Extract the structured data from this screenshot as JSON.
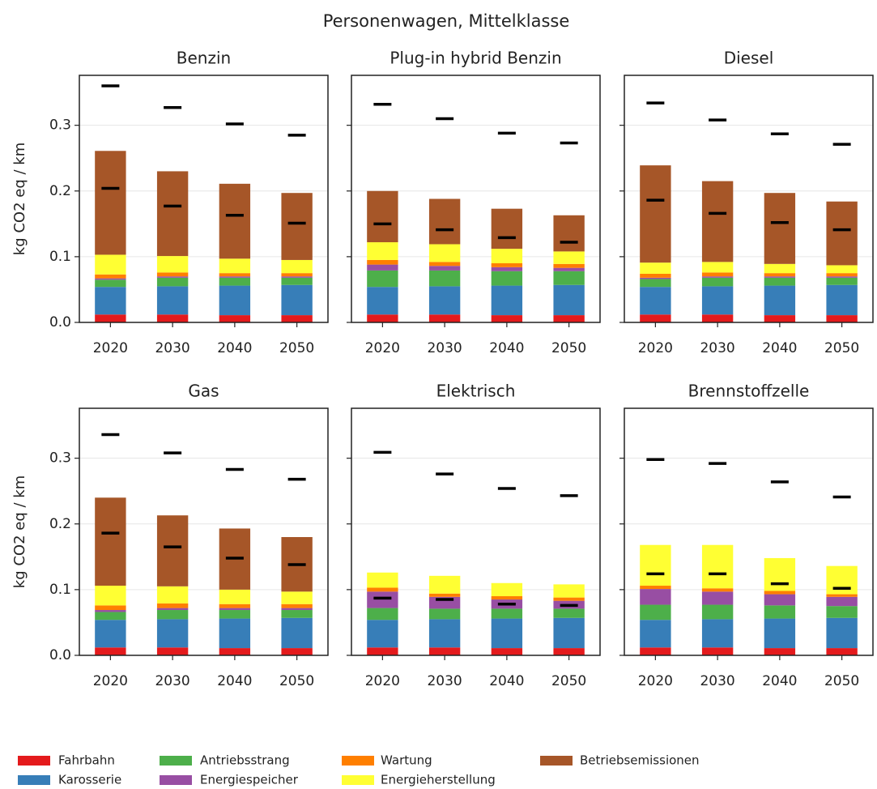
{
  "title": "Personenwagen, Mittelklasse",
  "chart_data": [
    {
      "type": "bar",
      "title": "Benzin",
      "ylabel": "kg CO2 eq / km",
      "categories": [
        "2020",
        "2030",
        "2040",
        "2050"
      ],
      "series": [
        {
          "name": "Fahrbahn",
          "color": "#e41a1c",
          "values": [
            0.012,
            0.012,
            0.011,
            0.011
          ]
        },
        {
          "name": "Karosserie",
          "color": "#377eb8",
          "values": [
            0.042,
            0.043,
            0.045,
            0.046
          ]
        },
        {
          "name": "Antriebsstrang",
          "color": "#4daf4a",
          "values": [
            0.011,
            0.013,
            0.012,
            0.011
          ]
        },
        {
          "name": "Energiespeicher",
          "color": "#984ea3",
          "values": [
            0.002,
            0.002,
            0.002,
            0.002
          ]
        },
        {
          "name": "Wartung",
          "color": "#ff7f00",
          "values": [
            0.006,
            0.006,
            0.005,
            0.005
          ]
        },
        {
          "name": "Energieherstellung",
          "color": "#ffff33",
          "values": [
            0.03,
            0.025,
            0.022,
            0.02
          ]
        },
        {
          "name": "Betriebsemissionen",
          "color": "#a65628",
          "values": [
            0.158,
            0.129,
            0.114,
            0.102
          ]
        }
      ],
      "markers": [
        [
          0.36,
          0.204
        ],
        [
          0.327,
          0.177
        ],
        [
          0.302,
          0.163
        ],
        [
          0.285,
          0.151
        ]
      ],
      "ylim": [
        0,
        0.376
      ],
      "yticks": [
        {
          "value": 0,
          "label": "0.0"
        },
        0.1,
        0.2,
        0.3
      ],
      "grid": true
    },
    {
      "type": "bar",
      "title": "Plug-in hybrid Benzin",
      "categories": [
        "2020",
        "2030",
        "2040",
        "2050"
      ],
      "series": [
        {
          "name": "Fahrbahn",
          "color": "#e41a1c",
          "values": [
            0.012,
            0.012,
            0.011,
            0.011
          ]
        },
        {
          "name": "Karosserie",
          "color": "#377eb8",
          "values": [
            0.042,
            0.043,
            0.045,
            0.046
          ]
        },
        {
          "name": "Antriebsstrang",
          "color": "#4daf4a",
          "values": [
            0.025,
            0.024,
            0.022,
            0.021
          ]
        },
        {
          "name": "Energiespeicher",
          "color": "#984ea3",
          "values": [
            0.009,
            0.007,
            0.006,
            0.005
          ]
        },
        {
          "name": "Wartung",
          "color": "#ff7f00",
          "values": [
            0.007,
            0.006,
            0.006,
            0.006
          ]
        },
        {
          "name": "Energieherstellung",
          "color": "#ffff33",
          "values": [
            0.027,
            0.027,
            0.022,
            0.019
          ]
        },
        {
          "name": "Betriebsemissionen",
          "color": "#a65628",
          "values": [
            0.078,
            0.069,
            0.061,
            0.055
          ]
        }
      ],
      "markers": [
        [
          0.332,
          0.15
        ],
        [
          0.31,
          0.141
        ],
        [
          0.288,
          0.129
        ],
        [
          0.273,
          0.122
        ]
      ],
      "ylim": [
        0,
        0.376
      ],
      "yticks": [
        0,
        0.1,
        0.2,
        0.3
      ],
      "grid": true
    },
    {
      "type": "bar",
      "title": "Diesel",
      "categories": [
        "2020",
        "2030",
        "2040",
        "2050"
      ],
      "series": [
        {
          "name": "Fahrbahn",
          "color": "#e41a1c",
          "values": [
            0.012,
            0.012,
            0.011,
            0.011
          ]
        },
        {
          "name": "Karosserie",
          "color": "#377eb8",
          "values": [
            0.042,
            0.043,
            0.045,
            0.046
          ]
        },
        {
          "name": "Antriebsstrang",
          "color": "#4daf4a",
          "values": [
            0.012,
            0.013,
            0.012,
            0.011
          ]
        },
        {
          "name": "Energiespeicher",
          "color": "#984ea3",
          "values": [
            0.002,
            0.002,
            0.002,
            0.002
          ]
        },
        {
          "name": "Wartung",
          "color": "#ff7f00",
          "values": [
            0.006,
            0.006,
            0.005,
            0.005
          ]
        },
        {
          "name": "Energieherstellung",
          "color": "#ffff33",
          "values": [
            0.017,
            0.016,
            0.014,
            0.012
          ]
        },
        {
          "name": "Betriebsemissionen",
          "color": "#a65628",
          "values": [
            0.148,
            0.123,
            0.108,
            0.097
          ]
        }
      ],
      "markers": [
        [
          0.334,
          0.186
        ],
        [
          0.308,
          0.166
        ],
        [
          0.287,
          0.152
        ],
        [
          0.271,
          0.141
        ]
      ],
      "ylim": [
        0,
        0.376
      ],
      "yticks": [
        0,
        0.1,
        0.2,
        0.3
      ],
      "grid": true
    },
    {
      "type": "bar",
      "title": "Gas",
      "ylabel": "kg CO2 eq / km",
      "categories": [
        "2020",
        "2030",
        "2040",
        "2050"
      ],
      "series": [
        {
          "name": "Fahrbahn",
          "color": "#e41a1c",
          "values": [
            0.012,
            0.012,
            0.011,
            0.011
          ]
        },
        {
          "name": "Karosserie",
          "color": "#377eb8",
          "values": [
            0.042,
            0.043,
            0.045,
            0.046
          ]
        },
        {
          "name": "Antriebsstrang",
          "color": "#4daf4a",
          "values": [
            0.012,
            0.014,
            0.013,
            0.012
          ]
        },
        {
          "name": "Energiespeicher",
          "color": "#984ea3",
          "values": [
            0.003,
            0.003,
            0.003,
            0.003
          ]
        },
        {
          "name": "Wartung",
          "color": "#ff7f00",
          "values": [
            0.007,
            0.007,
            0.006,
            0.006
          ]
        },
        {
          "name": "Energieherstellung",
          "color": "#ffff33",
          "values": [
            0.03,
            0.026,
            0.022,
            0.019
          ]
        },
        {
          "name": "Betriebsemissionen",
          "color": "#a65628",
          "values": [
            0.134,
            0.108,
            0.093,
            0.083
          ]
        }
      ],
      "markers": [
        [
          0.336,
          0.186
        ],
        [
          0.308,
          0.165
        ],
        [
          0.283,
          0.148
        ],
        [
          0.268,
          0.138
        ]
      ],
      "ylim": [
        0,
        0.376
      ],
      "yticks": [
        {
          "value": 0,
          "label": "0.0"
        },
        0.1,
        0.2,
        0.3
      ],
      "grid": true
    },
    {
      "type": "bar",
      "title": "Elektrisch",
      "categories": [
        "2020",
        "2030",
        "2040",
        "2050"
      ],
      "series": [
        {
          "name": "Fahrbahn",
          "color": "#e41a1c",
          "values": [
            0.012,
            0.012,
            0.011,
            0.011
          ]
        },
        {
          "name": "Karosserie",
          "color": "#377eb8",
          "values": [
            0.042,
            0.043,
            0.045,
            0.046
          ]
        },
        {
          "name": "Antriebsstrang",
          "color": "#4daf4a",
          "values": [
            0.018,
            0.016,
            0.015,
            0.014
          ]
        },
        {
          "name": "Energiespeicher",
          "color": "#984ea3",
          "values": [
            0.025,
            0.018,
            0.014,
            0.012
          ]
        },
        {
          "name": "Wartung",
          "color": "#ff7f00",
          "values": [
            0.006,
            0.005,
            0.005,
            0.005
          ]
        },
        {
          "name": "Energieherstellung",
          "color": "#ffff33",
          "values": [
            0.023,
            0.027,
            0.02,
            0.02
          ]
        },
        {
          "name": "Betriebsemissionen",
          "color": "#a65628",
          "values": [
            0,
            0,
            0,
            0
          ]
        }
      ],
      "markers": [
        [
          0.309,
          0.087
        ],
        [
          0.276,
          0.085
        ],
        [
          0.254,
          0.078
        ],
        [
          0.243,
          0.076
        ]
      ],
      "ylim": [
        0,
        0.376
      ],
      "yticks": [
        0,
        0.1,
        0.2,
        0.3
      ],
      "grid": true
    },
    {
      "type": "bar",
      "title": "Brennstoffzelle",
      "categories": [
        "2020",
        "2030",
        "2040",
        "2050"
      ],
      "series": [
        {
          "name": "Fahrbahn",
          "color": "#e41a1c",
          "values": [
            0.012,
            0.012,
            0.011,
            0.011
          ]
        },
        {
          "name": "Karosserie",
          "color": "#377eb8",
          "values": [
            0.042,
            0.043,
            0.045,
            0.046
          ]
        },
        {
          "name": "Antriebsstrang",
          "color": "#4daf4a",
          "values": [
            0.023,
            0.022,
            0.02,
            0.018
          ]
        },
        {
          "name": "Energiespeicher",
          "color": "#984ea3",
          "values": [
            0.024,
            0.02,
            0.017,
            0.014
          ]
        },
        {
          "name": "Wartung",
          "color": "#ff7f00",
          "values": [
            0.005,
            0.005,
            0.005,
            0.004
          ]
        },
        {
          "name": "Energieherstellung",
          "color": "#ffff33",
          "values": [
            0.062,
            0.066,
            0.05,
            0.043
          ]
        },
        {
          "name": "Betriebsemissionen",
          "color": "#a65628",
          "values": [
            0,
            0,
            0,
            0
          ]
        }
      ],
      "markers": [
        [
          0.298,
          0.124
        ],
        [
          0.292,
          0.124
        ],
        [
          0.264,
          0.109
        ],
        [
          0.241,
          0.102
        ]
      ],
      "ylim": [
        0,
        0.376
      ],
      "yticks": [
        0,
        0.1,
        0.2,
        0.3
      ],
      "grid": true
    }
  ]
}
